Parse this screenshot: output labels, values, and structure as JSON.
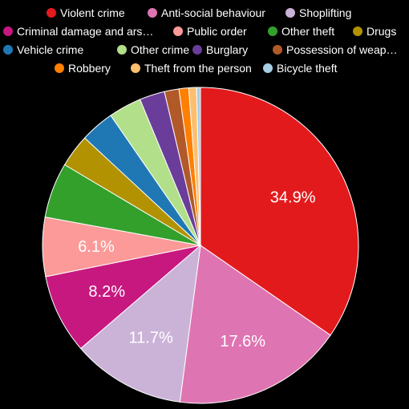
{
  "chart_data": {
    "type": "pie",
    "title": "",
    "legend_placement": "top",
    "series": [
      {
        "name": "Violent crime",
        "value": 34.9,
        "color": "#e31a1c",
        "label": "34.9%"
      },
      {
        "name": "Anti-social behaviour",
        "value": 17.6,
        "color": "#df74b2",
        "label": "17.6%"
      },
      {
        "name": "Shoplifting",
        "value": 11.7,
        "color": "#cbb3d8",
        "label": "11.7%"
      },
      {
        "name": "Criminal damage and ars…",
        "value": 8.2,
        "color": "#c7187f",
        "label": "8.2%"
      },
      {
        "name": "Public order",
        "value": 6.1,
        "color": "#fb9a99",
        "label": "6.1%"
      },
      {
        "name": "Other theft",
        "value": 5.7,
        "color": "#33a02c",
        "label": ""
      },
      {
        "name": "Drugs",
        "value": 3.4,
        "color": "#b29200",
        "label": ""
      },
      {
        "name": "Vehicle crime",
        "value": 3.5,
        "color": "#1f78b4",
        "label": ""
      },
      {
        "name": "Other crime",
        "value": 3.4,
        "color": "#b2df8a",
        "label": ""
      },
      {
        "name": "Burglary",
        "value": 2.6,
        "color": "#6a3d9a",
        "label": ""
      },
      {
        "name": "Possession of weap…",
        "value": 1.5,
        "color": "#b15928",
        "label": ""
      },
      {
        "name": "Robbery",
        "value": 1.0,
        "color": "#ff7f00",
        "label": ""
      },
      {
        "name": "Theft from the person",
        "value": 0.8,
        "color": "#fdbf6f",
        "label": ""
      },
      {
        "name": "Bicycle theft",
        "value": 0.4,
        "color": "#a6cee3",
        "label": ""
      }
    ]
  }
}
